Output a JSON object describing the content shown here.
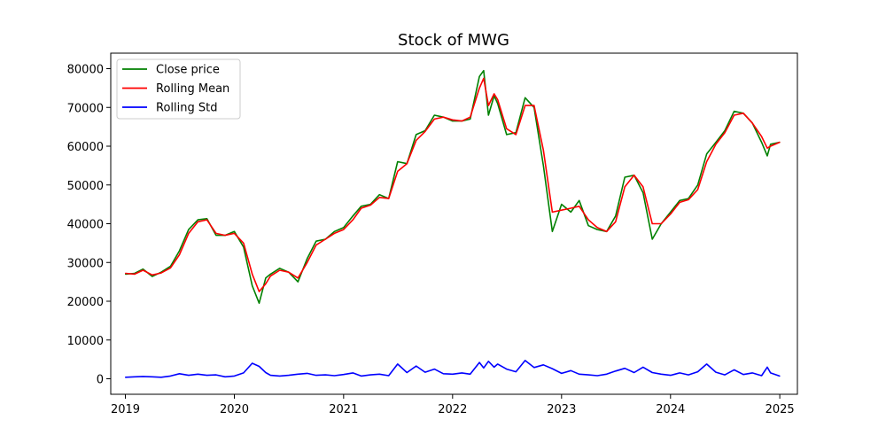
{
  "chart_data": {
    "type": "line",
    "title": "Stock of MWG",
    "xlabel": "",
    "ylabel": "",
    "xlim": [
      "2018-11-13",
      "2025-03-01"
    ],
    "ylim": [
      -4000,
      84000
    ],
    "x_ticks": [
      "2019",
      "2020",
      "2021",
      "2022",
      "2023",
      "2024",
      "2025"
    ],
    "y_ticks": [
      0,
      10000,
      20000,
      30000,
      40000,
      50000,
      60000,
      70000,
      80000
    ],
    "grid": false,
    "legend": "upper left",
    "series": [
      {
        "name": "Close price",
        "color": "#008000",
        "points": [
          [
            "2019-01-02",
            27000
          ],
          [
            "2019-02-01",
            27200
          ],
          [
            "2019-03-01",
            28300
          ],
          [
            "2019-04-01",
            26400
          ],
          [
            "2019-05-01",
            27500
          ],
          [
            "2019-06-01",
            29000
          ],
          [
            "2019-07-01",
            33000
          ],
          [
            "2019-08-01",
            38500
          ],
          [
            "2019-09-01",
            41000
          ],
          [
            "2019-10-01",
            41300
          ],
          [
            "2019-11-01",
            37000
          ],
          [
            "2019-12-01",
            37000
          ],
          [
            "2020-01-01",
            38000
          ],
          [
            "2020-02-01",
            34000
          ],
          [
            "2020-03-01",
            24000
          ],
          [
            "2020-03-24",
            19500
          ],
          [
            "2020-04-15",
            26000
          ],
          [
            "2020-05-01",
            27000
          ],
          [
            "2020-06-01",
            28500
          ],
          [
            "2020-07-01",
            27500
          ],
          [
            "2020-08-01",
            25000
          ],
          [
            "2020-09-01",
            31000
          ],
          [
            "2020-10-01",
            35500
          ],
          [
            "2020-11-01",
            36000
          ],
          [
            "2020-12-01",
            38000
          ],
          [
            "2021-01-01",
            39000
          ],
          [
            "2021-02-01",
            42000
          ],
          [
            "2021-03-01",
            44500
          ],
          [
            "2021-04-01",
            45000
          ],
          [
            "2021-05-01",
            47500
          ],
          [
            "2021-06-01",
            46500
          ],
          [
            "2021-07-01",
            56000
          ],
          [
            "2021-08-01",
            55500
          ],
          [
            "2021-09-01",
            63000
          ],
          [
            "2021-10-01",
            64000
          ],
          [
            "2021-11-01",
            68000
          ],
          [
            "2021-12-01",
            67500
          ],
          [
            "2022-01-01",
            66500
          ],
          [
            "2022-02-01",
            66500
          ],
          [
            "2022-03-01",
            67000
          ],
          [
            "2022-04-01",
            78000
          ],
          [
            "2022-04-15",
            79500
          ],
          [
            "2022-05-01",
            68000
          ],
          [
            "2022-05-20",
            73000
          ],
          [
            "2022-06-01",
            71000
          ],
          [
            "2022-07-01",
            63000
          ],
          [
            "2022-08-01",
            63500
          ],
          [
            "2022-09-01",
            72500
          ],
          [
            "2022-10-01",
            70000
          ],
          [
            "2022-11-01",
            55000
          ],
          [
            "2022-12-01",
            38000
          ],
          [
            "2023-01-01",
            45000
          ],
          [
            "2023-02-01",
            43000
          ],
          [
            "2023-03-01",
            46000
          ],
          [
            "2023-04-01",
            39500
          ],
          [
            "2023-05-01",
            38500
          ],
          [
            "2023-06-01",
            38000
          ],
          [
            "2023-07-01",
            42000
          ],
          [
            "2023-08-01",
            52000
          ],
          [
            "2023-09-01",
            52500
          ],
          [
            "2023-10-01",
            48000
          ],
          [
            "2023-11-01",
            36000
          ],
          [
            "2023-12-01",
            40000
          ],
          [
            "2024-01-01",
            43000
          ],
          [
            "2024-02-01",
            46000
          ],
          [
            "2024-03-01",
            46500
          ],
          [
            "2024-04-01",
            50000
          ],
          [
            "2024-05-01",
            58000
          ],
          [
            "2024-06-01",
            61000
          ],
          [
            "2024-07-01",
            64000
          ],
          [
            "2024-08-01",
            69000
          ],
          [
            "2024-09-01",
            68500
          ],
          [
            "2024-10-01",
            66000
          ],
          [
            "2024-11-01",
            61000
          ],
          [
            "2024-11-20",
            57500
          ],
          [
            "2024-12-01",
            60500
          ],
          [
            "2024-12-31",
            61000
          ]
        ]
      },
      {
        "name": "Rolling Mean",
        "color": "#ff0000",
        "points": [
          [
            "2019-01-02",
            27200
          ],
          [
            "2019-02-01",
            27000
          ],
          [
            "2019-03-01",
            28000
          ],
          [
            "2019-04-01",
            26800
          ],
          [
            "2019-05-01",
            27300
          ],
          [
            "2019-06-01",
            28600
          ],
          [
            "2019-07-01",
            32000
          ],
          [
            "2019-08-01",
            37500
          ],
          [
            "2019-09-01",
            40500
          ],
          [
            "2019-10-01",
            41000
          ],
          [
            "2019-11-01",
            37500
          ],
          [
            "2019-12-01",
            37000
          ],
          [
            "2020-01-01",
            37500
          ],
          [
            "2020-02-01",
            35000
          ],
          [
            "2020-03-01",
            27000
          ],
          [
            "2020-03-24",
            22500
          ],
          [
            "2020-04-15",
            24500
          ],
          [
            "2020-05-01",
            26500
          ],
          [
            "2020-06-01",
            28000
          ],
          [
            "2020-07-01",
            27500
          ],
          [
            "2020-08-01",
            26000
          ],
          [
            "2020-09-01",
            30000
          ],
          [
            "2020-10-01",
            34500
          ],
          [
            "2020-11-01",
            36000
          ],
          [
            "2020-12-01",
            37500
          ],
          [
            "2021-01-01",
            38500
          ],
          [
            "2021-02-01",
            41000
          ],
          [
            "2021-03-01",
            44000
          ],
          [
            "2021-04-01",
            44800
          ],
          [
            "2021-05-01",
            46800
          ],
          [
            "2021-06-01",
            46500
          ],
          [
            "2021-07-01",
            53500
          ],
          [
            "2021-08-01",
            55500
          ],
          [
            "2021-09-01",
            61500
          ],
          [
            "2021-10-01",
            63800
          ],
          [
            "2021-11-01",
            67000
          ],
          [
            "2021-12-01",
            67500
          ],
          [
            "2022-01-01",
            66800
          ],
          [
            "2022-02-01",
            66500
          ],
          [
            "2022-03-01",
            67500
          ],
          [
            "2022-04-01",
            75000
          ],
          [
            "2022-04-15",
            77500
          ],
          [
            "2022-05-01",
            70500
          ],
          [
            "2022-05-20",
            73500
          ],
          [
            "2022-06-01",
            72000
          ],
          [
            "2022-07-01",
            64500
          ],
          [
            "2022-08-01",
            63000
          ],
          [
            "2022-09-01",
            70500
          ],
          [
            "2022-10-01",
            70500
          ],
          [
            "2022-11-01",
            59000
          ],
          [
            "2022-12-01",
            43000
          ],
          [
            "2023-01-01",
            43500
          ],
          [
            "2023-02-01",
            44000
          ],
          [
            "2023-03-01",
            44500
          ],
          [
            "2023-04-01",
            41000
          ],
          [
            "2023-05-01",
            39000
          ],
          [
            "2023-06-01",
            38000
          ],
          [
            "2023-07-01",
            40500
          ],
          [
            "2023-08-01",
            49500
          ],
          [
            "2023-09-01",
            52500
          ],
          [
            "2023-10-01",
            49500
          ],
          [
            "2023-11-01",
            40000
          ],
          [
            "2023-12-01",
            40000
          ],
          [
            "2024-01-01",
            42500
          ],
          [
            "2024-02-01",
            45500
          ],
          [
            "2024-03-01",
            46200
          ],
          [
            "2024-04-01",
            48800
          ],
          [
            "2024-05-01",
            56000
          ],
          [
            "2024-06-01",
            60500
          ],
          [
            "2024-07-01",
            63500
          ],
          [
            "2024-08-01",
            68000
          ],
          [
            "2024-09-01",
            68500
          ],
          [
            "2024-10-01",
            66000
          ],
          [
            "2024-11-01",
            62500
          ],
          [
            "2024-11-20",
            59500
          ],
          [
            "2024-12-01",
            60000
          ],
          [
            "2024-12-31",
            61000
          ]
        ]
      },
      {
        "name": "Rolling Std",
        "color": "#0000ff",
        "points": [
          [
            "2019-01-02",
            400
          ],
          [
            "2019-02-01",
            500
          ],
          [
            "2019-03-01",
            600
          ],
          [
            "2019-04-01",
            500
          ],
          [
            "2019-05-01",
            400
          ],
          [
            "2019-06-01",
            700
          ],
          [
            "2019-07-01",
            1300
          ],
          [
            "2019-08-01",
            900
          ],
          [
            "2019-09-01",
            1200
          ],
          [
            "2019-10-01",
            900
          ],
          [
            "2019-11-01",
            1000
          ],
          [
            "2019-12-01",
            500
          ],
          [
            "2020-01-01",
            700
          ],
          [
            "2020-02-01",
            1500
          ],
          [
            "2020-03-01",
            4000
          ],
          [
            "2020-03-24",
            3200
          ],
          [
            "2020-04-15",
            1600
          ],
          [
            "2020-05-01",
            900
          ],
          [
            "2020-06-01",
            700
          ],
          [
            "2020-07-01",
            900
          ],
          [
            "2020-08-01",
            1200
          ],
          [
            "2020-09-01",
            1400
          ],
          [
            "2020-10-01",
            900
          ],
          [
            "2020-11-01",
            1000
          ],
          [
            "2020-12-01",
            800
          ],
          [
            "2021-01-01",
            1100
          ],
          [
            "2021-02-01",
            1500
          ],
          [
            "2021-03-01",
            700
          ],
          [
            "2021-04-01",
            1000
          ],
          [
            "2021-05-01",
            1200
          ],
          [
            "2021-06-01",
            800
          ],
          [
            "2021-07-01",
            3800
          ],
          [
            "2021-08-01",
            1600
          ],
          [
            "2021-09-01",
            3300
          ],
          [
            "2021-10-01",
            1700
          ],
          [
            "2021-11-01",
            2500
          ],
          [
            "2021-12-01",
            1300
          ],
          [
            "2022-01-01",
            1200
          ],
          [
            "2022-02-01",
            1500
          ],
          [
            "2022-03-01",
            1200
          ],
          [
            "2022-04-01",
            4200
          ],
          [
            "2022-04-15",
            2800
          ],
          [
            "2022-05-01",
            4500
          ],
          [
            "2022-05-20",
            3000
          ],
          [
            "2022-06-01",
            3800
          ],
          [
            "2022-07-01",
            2500
          ],
          [
            "2022-08-01",
            1800
          ],
          [
            "2022-09-01",
            4700
          ],
          [
            "2022-10-01",
            2900
          ],
          [
            "2022-11-01",
            3600
          ],
          [
            "2022-12-01",
            2600
          ],
          [
            "2023-01-01",
            1400
          ],
          [
            "2023-02-01",
            2100
          ],
          [
            "2023-03-01",
            1200
          ],
          [
            "2023-04-01",
            1000
          ],
          [
            "2023-05-01",
            800
          ],
          [
            "2023-06-01",
            1200
          ],
          [
            "2023-07-01",
            2000
          ],
          [
            "2023-08-01",
            2700
          ],
          [
            "2023-09-01",
            1600
          ],
          [
            "2023-10-01",
            3000
          ],
          [
            "2023-11-01",
            1600
          ],
          [
            "2023-12-01",
            1200
          ],
          [
            "2024-01-01",
            900
          ],
          [
            "2024-02-01",
            1500
          ],
          [
            "2024-03-01",
            1000
          ],
          [
            "2024-04-01",
            1800
          ],
          [
            "2024-05-01",
            3800
          ],
          [
            "2024-06-01",
            1700
          ],
          [
            "2024-07-01",
            1000
          ],
          [
            "2024-08-01",
            2300
          ],
          [
            "2024-09-01",
            1100
          ],
          [
            "2024-10-01",
            1500
          ],
          [
            "2024-11-01",
            800
          ],
          [
            "2024-11-20",
            3000
          ],
          [
            "2024-12-01",
            1500
          ],
          [
            "2024-12-31",
            700
          ]
        ]
      }
    ]
  }
}
